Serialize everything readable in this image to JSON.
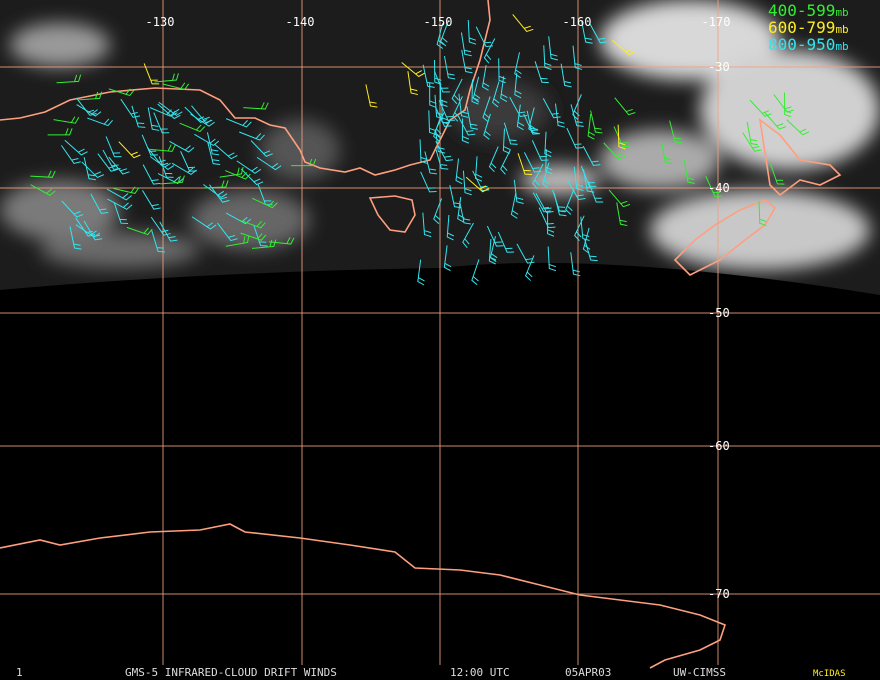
{
  "map": {
    "longitude_labels": [
      "-130",
      "-140",
      "-150",
      "-160",
      "-170"
    ],
    "latitude_labels": [
      "-30",
      "-40",
      "-50",
      "-60",
      "-70"
    ],
    "legend": [
      {
        "range": "400-599",
        "unit": "mb"
      },
      {
        "range": "600-799",
        "unit": "mb"
      },
      {
        "range": "800-950",
        "unit": "mb"
      }
    ],
    "footer": {
      "frame": "1",
      "product": "GMS-5 INFRARED-CLOUD DRIFT WINDS",
      "time": "12:00 UTC",
      "date": "05APR03",
      "source": "UW-CIMSS",
      "software": "McIDAS"
    }
  }
}
